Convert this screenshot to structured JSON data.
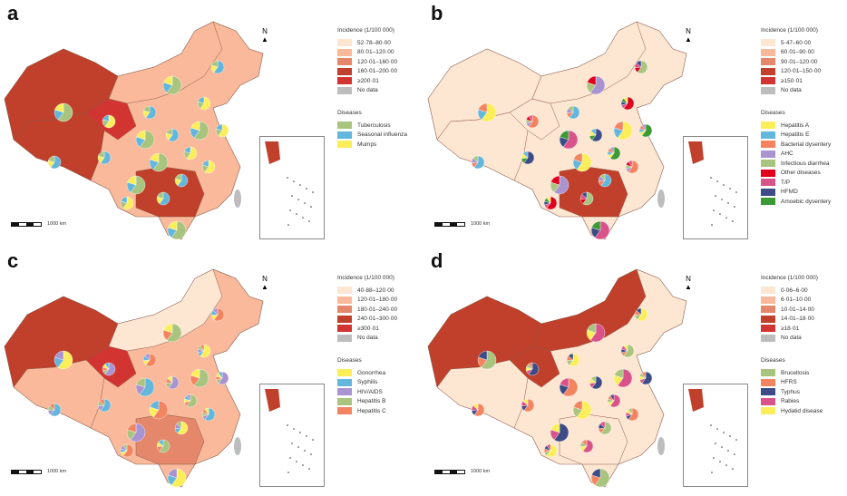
{
  "panels": [
    {
      "label": "a",
      "legend_title": "Incidence (1/100 000)",
      "classes": [
        "52·78–80·00",
        "80·01–120·00",
        "120·01–160·00",
        "160·01–200·00",
        "≥200·01",
        "No data"
      ],
      "diseases_title": "Diseases",
      "diseases": [
        {
          "name": "Tuberculosis",
          "color": "#a9c47f"
        },
        {
          "name": "Seasonal influenza",
          "color": "#63b6dc"
        },
        {
          "name": "Mumps",
          "color": "#fbee5a"
        }
      ],
      "scale": "1000 km",
      "north": "N"
    },
    {
      "label": "b",
      "legend_title": "Incidence (1/100 000)",
      "classes": [
        "5·47–60·00",
        "60·01–90·00",
        "90·01–120·00",
        "120·01–150·00",
        "≥150·01",
        "No data"
      ],
      "diseases_title": "Diseases",
      "diseases": [
        {
          "name": "Hepatitis A",
          "color": "#fbee5a"
        },
        {
          "name": "Hepatitis E",
          "color": "#63b6dc"
        },
        {
          "name": "Bacterial dysentery",
          "color": "#f4845f"
        },
        {
          "name": "AHC",
          "color": "#a993d0"
        },
        {
          "name": "Infectious diarrhea",
          "color": "#a9c47f"
        },
        {
          "name": "Other diseases",
          "color": "#e0001b"
        },
        {
          "name": "T/P",
          "color": "#d9538a"
        },
        {
          "name": "HFMD",
          "color": "#3d4b86"
        },
        {
          "name": "Amoebic dysentery",
          "color": "#3c9a35"
        }
      ],
      "scale": "1000 km",
      "north": "N"
    },
    {
      "label": "c",
      "legend_title": "Incidence (1/100 000)",
      "classes": [
        "40·88–120·00",
        "120·01–180·00",
        "180·01–240·00",
        "240·01–300·00",
        "≥300·01",
        "No data"
      ],
      "diseases_title": "Diseases",
      "diseases": [
        {
          "name": "Gonorrhea",
          "color": "#fbee5a"
        },
        {
          "name": "Syphilis",
          "color": "#63b6dc"
        },
        {
          "name": "HIV/AIDS",
          "color": "#a993d0"
        },
        {
          "name": "Hepatitis B",
          "color": "#a9c47f"
        },
        {
          "name": "Hepatitis C",
          "color": "#f4845f"
        }
      ],
      "scale": "1000 km",
      "north": "N"
    },
    {
      "label": "d",
      "legend_title": "Incidence (1/100 000)",
      "classes": [
        "0·06–6·00",
        "6·01–10·00",
        "10·01–14·00",
        "14·01–18·00",
        "≥18·01",
        "No data"
      ],
      "diseases_title": "Diseases",
      "diseases": [
        {
          "name": "Brucellosis",
          "color": "#a9c47f"
        },
        {
          "name": "HFRS",
          "color": "#f4845f"
        },
        {
          "name": "Typhus",
          "color": "#3d4b86"
        },
        {
          "name": "Rabies",
          "color": "#d9538a"
        },
        {
          "name": "Hydatid disease",
          "color": "#fbee5a"
        }
      ],
      "scale": "1000 km",
      "north": "N"
    }
  ],
  "class_colors": [
    "#fde6d2",
    "#f9b99a",
    "#e5876a",
    "#c0402b",
    "#d23431",
    "#bdbdbd"
  ]
}
